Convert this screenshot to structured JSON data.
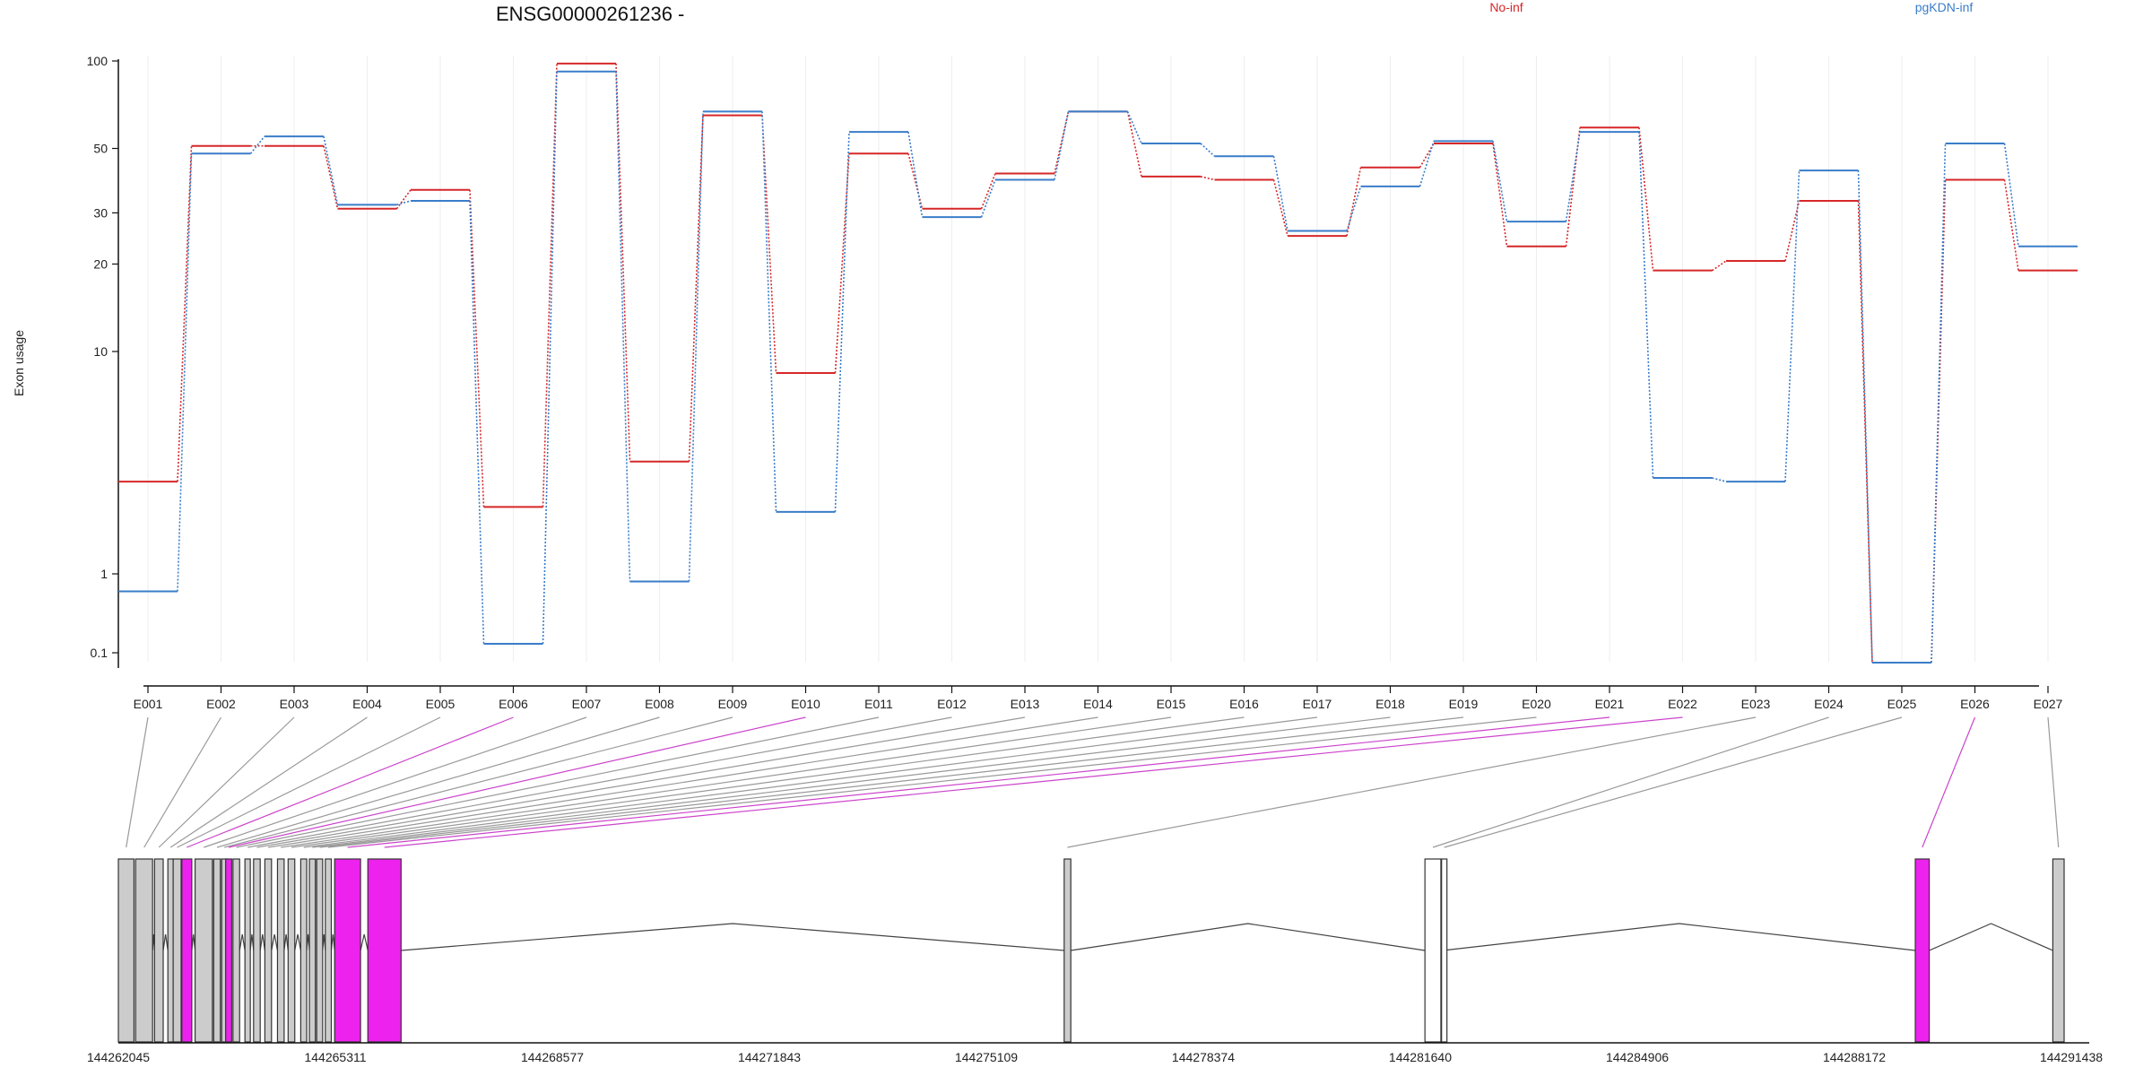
{
  "chart_data": {
    "type": "line",
    "title": "ENSG00000261236 -",
    "ylabel": "Exon usage",
    "yscale": "log",
    "ylim": [
      0.07,
      110
    ],
    "y_ticks": [
      "100",
      "50",
      "30",
      "20",
      "10",
      "1",
      "0.1"
    ],
    "legend_placement": "top-right",
    "categories": [
      "E001",
      "E002",
      "E003",
      "E004",
      "E005",
      "E006",
      "E007",
      "E008",
      "E009",
      "E010",
      "E011",
      "E012",
      "E013",
      "E014",
      "E015",
      "E016",
      "E017",
      "E018",
      "E019",
      "E020",
      "E021",
      "E022",
      "E023",
      "E024",
      "E025",
      "E026",
      "E027"
    ],
    "series": [
      {
        "name": "No-inf",
        "color": "#d62728",
        "values": [
          2.6,
          51,
          51,
          31,
          36,
          2.0,
          98,
          3.2,
          65,
          8,
          48,
          31,
          41,
          67,
          40,
          39,
          25,
          43,
          52,
          23,
          59,
          19,
          20.5,
          33,
          0.075,
          39,
          19
        ]
      },
      {
        "name": "pgKDN-inf",
        "color": "#3a7dc9",
        "values": [
          0.6,
          48,
          55,
          32,
          33,
          0.13,
          92,
          0.8,
          67,
          1.9,
          57,
          29,
          39,
          67,
          52,
          47,
          26,
          37,
          53,
          28,
          57,
          2.7,
          2.6,
          42,
          0.075,
          52,
          23
        ]
      }
    ],
    "gene_model": {
      "x_ticks": [
        "144262045",
        "144265311",
        "144268577",
        "144271843",
        "144275109",
        "144278374",
        "144281640",
        "144284906",
        "144288172",
        "144291438"
      ],
      "highlight_color": "#ee22ee",
      "exon_color": "#cccccc",
      "exons": [
        {
          "id": "E001",
          "start": 144262045,
          "end": 144262280,
          "style": "grey",
          "highlight": false
        },
        {
          "id": "E002",
          "start": 144262305,
          "end": 144262560,
          "style": "grey",
          "highlight": false
        },
        {
          "id": "E003",
          "start": 144262590,
          "end": 144262720,
          "style": "grey",
          "highlight": false
        },
        {
          "id": "E004",
          "start": 144262790,
          "end": 144262860,
          "style": "grey",
          "highlight": false
        },
        {
          "id": "E005",
          "start": 144262870,
          "end": 144262990,
          "style": "grey",
          "highlight": false
        },
        {
          "id": "E006",
          "start": 144263000,
          "end": 144263150,
          "style": "magenta",
          "highlight": true
        },
        {
          "id": "E007",
          "start": 144263200,
          "end": 144263460,
          "style": "grey",
          "highlight": false
        },
        {
          "id": "E008",
          "start": 144263480,
          "end": 144263580,
          "style": "grey",
          "highlight": false
        },
        {
          "id": "E009",
          "start": 144263600,
          "end": 144263650,
          "style": "grey",
          "highlight": false
        },
        {
          "id": "E010",
          "start": 144263660,
          "end": 144263750,
          "style": "magenta",
          "highlight": true
        },
        {
          "id": "E011",
          "start": 144263770,
          "end": 144263870,
          "style": "grey",
          "highlight": false
        },
        {
          "id": "E012",
          "start": 144263950,
          "end": 144264030,
          "style": "grey",
          "highlight": false
        },
        {
          "id": "E013",
          "start": 144264080,
          "end": 144264180,
          "style": "grey",
          "highlight": false
        },
        {
          "id": "E014",
          "start": 144264250,
          "end": 144264350,
          "style": "grey",
          "highlight": false
        },
        {
          "id": "E015",
          "start": 144264440,
          "end": 144264540,
          "style": "grey",
          "highlight": false
        },
        {
          "id": "E016",
          "start": 144264600,
          "end": 144264700,
          "style": "grey",
          "highlight": false
        },
        {
          "id": "E017",
          "start": 144264790,
          "end": 144264880,
          "style": "grey",
          "highlight": false
        },
        {
          "id": "E018",
          "start": 144264920,
          "end": 144265010,
          "style": "grey",
          "highlight": false
        },
        {
          "id": "E019",
          "start": 144265030,
          "end": 144265120,
          "style": "grey",
          "highlight": false
        },
        {
          "id": "E020",
          "start": 144265160,
          "end": 144265250,
          "style": "grey",
          "highlight": false
        },
        {
          "id": "E021",
          "start": 144265300,
          "end": 144265690,
          "style": "magenta",
          "highlight": true
        },
        {
          "id": "E022",
          "start": 144265800,
          "end": 144266300,
          "style": "magenta",
          "highlight": true
        },
        {
          "id": "E023",
          "start": 144276280,
          "end": 144276380,
          "style": "grey",
          "highlight": false
        },
        {
          "id": "E024",
          "start": 144281710,
          "end": 144281950,
          "style": "white",
          "highlight": false
        },
        {
          "id": "E025",
          "start": 144281960,
          "end": 144281980,
          "style": "white",
          "highlight": false
        },
        {
          "id": "E026",
          "start": 144289090,
          "end": 144289300,
          "style": "magenta",
          "highlight": true
        },
        {
          "id": "E027",
          "start": 144291160,
          "end": 144291330,
          "style": "grey",
          "highlight": false
        }
      ]
    }
  }
}
